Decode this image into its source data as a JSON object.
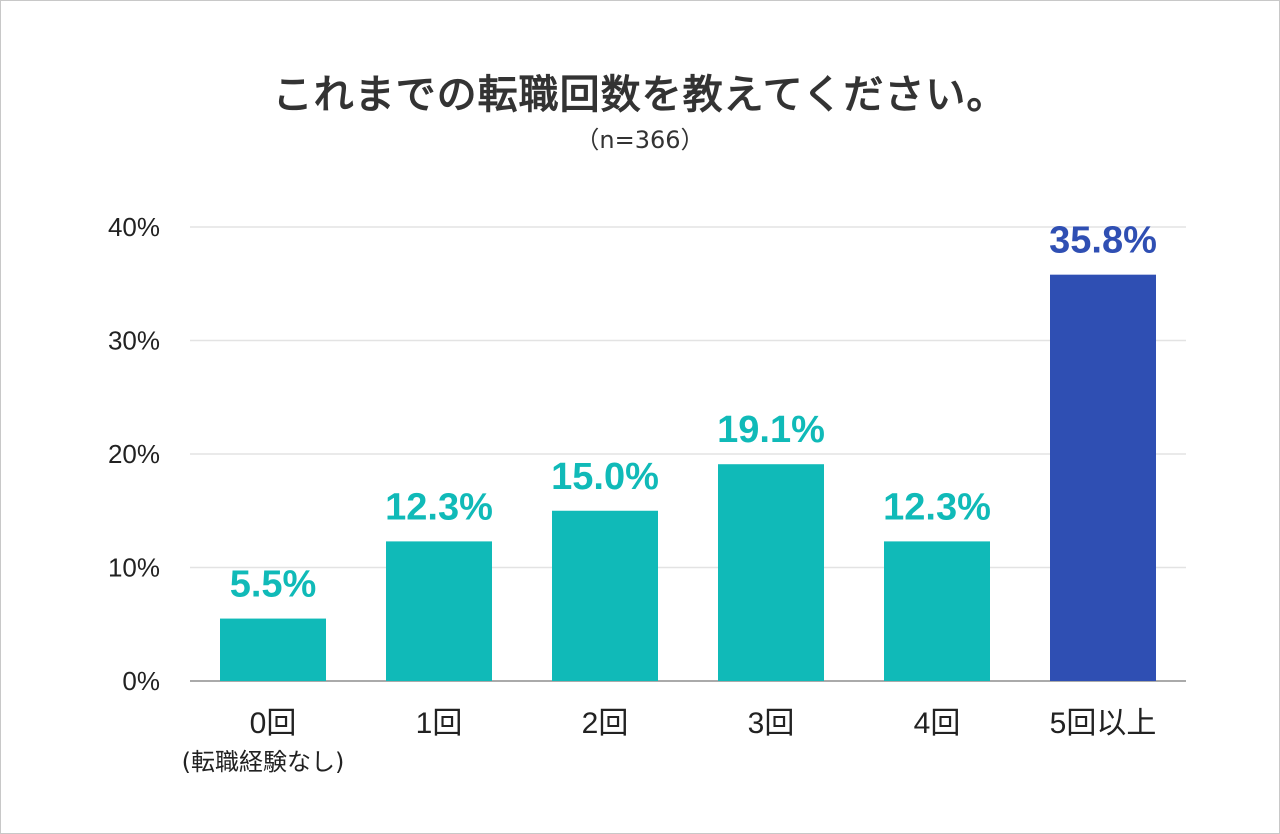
{
  "chart_data": {
    "type": "bar",
    "title": "これまでの転職回数を教えてください。",
    "subtitle": "（n=366）",
    "categories": [
      "0回",
      "1回",
      "2回",
      "3回",
      "4回",
      "5回以上"
    ],
    "category_sublabels": [
      "(転職経験なし)",
      "",
      "",
      "",
      "",
      ""
    ],
    "values": [
      5.5,
      12.3,
      15.0,
      19.1,
      12.3,
      35.8
    ],
    "data_labels": [
      "5.5%",
      "12.3%",
      "15.0%",
      "19.1%",
      "12.3%",
      "35.8%"
    ],
    "yticks": [
      "0%",
      "10%",
      "20%",
      "30%",
      "40%"
    ],
    "ylim": [
      0,
      40
    ],
    "grid": true,
    "colors": [
      "#10bab8",
      "#10bab8",
      "#10bab8",
      "#10bab8",
      "#10bab8",
      "#2f4fb3"
    ]
  }
}
